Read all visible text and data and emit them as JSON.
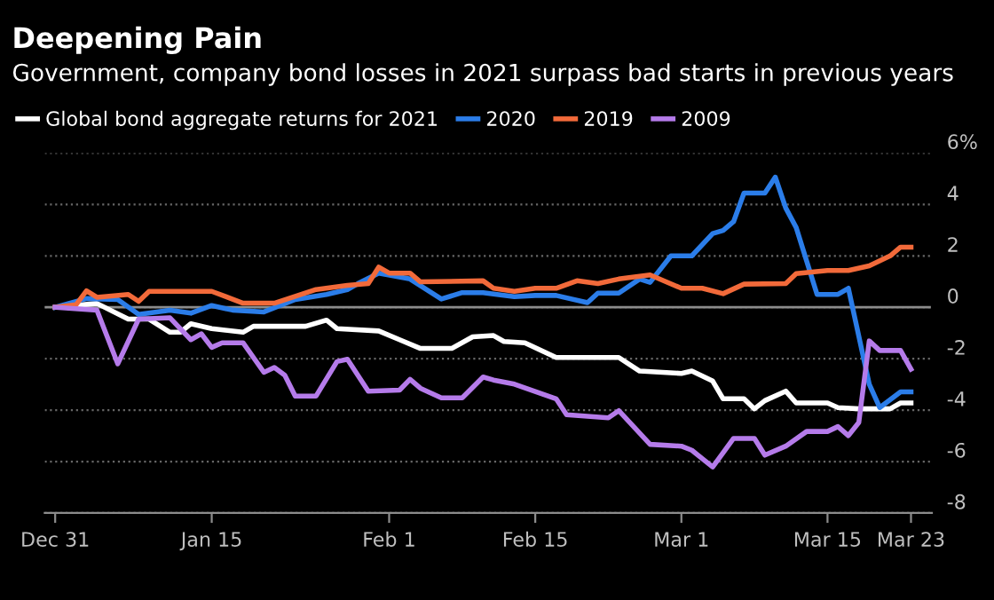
{
  "chart_data": {
    "type": "line",
    "title": "Deepening Pain",
    "subtitle": "Government, company bond losses in 2021 surpass bad starts in previous years",
    "xlim": [
      "2020-12-30",
      "2021-03-25"
    ],
    "xticks": [
      {
        "value": "2020-12-31",
        "label": "Dec 31"
      },
      {
        "value": "2021-01-15",
        "label": "Jan 15"
      },
      {
        "value": "2021-02-01",
        "label": "Feb 1"
      },
      {
        "value": "2021-02-15",
        "label": "Feb 15"
      },
      {
        "value": "2021-03-01",
        "label": "Mar 1"
      },
      {
        "value": "2021-03-15",
        "label": "Mar 15"
      },
      {
        "value": "2021-03-23",
        "label": "Mar 23"
      }
    ],
    "ylim": [
      -8,
      6
    ],
    "yticks": [
      -8,
      -6,
      -4,
      -2,
      0,
      2,
      4,
      {
        "value": 6,
        "label": "6%"
      }
    ],
    "grid": "y",
    "legend": "top left",
    "line_style": "solid",
    "ref_lines": [
      {
        "axis": "y",
        "value": 0,
        "color": "#8c8c8c",
        "line_style": "solid"
      }
    ],
    "series": [
      {
        "name": "Global bond aggregate returns for 2021",
        "color": "#ffffff",
        "x": [
          "2020-12-31",
          "2021-01-04",
          "2021-01-07",
          "2021-01-09",
          "2021-01-11",
          "2021-01-12",
          "2021-01-13",
          "2021-01-15",
          "2021-01-18",
          "2021-01-19",
          "2021-01-24",
          "2021-01-26",
          "2021-01-27",
          "2021-01-31",
          "2021-02-02",
          "2021-02-04",
          "2021-02-07",
          "2021-02-09",
          "2021-02-11",
          "2021-02-12",
          "2021-02-14",
          "2021-02-17",
          "2021-02-23",
          "2021-02-25",
          "2021-03-01",
          "2021-03-02",
          "2021-03-04",
          "2021-03-05",
          "2021-03-07",
          "2021-03-08",
          "2021-03-09",
          "2021-03-11",
          "2021-03-12",
          "2021-03-15",
          "2021-03-16",
          "2021-03-18",
          "2021-03-21",
          "2021-03-22",
          "2021-03-23"
        ],
        "values": [
          0,
          0.15,
          -0.46,
          -0.46,
          -0.97,
          -0.97,
          -0.64,
          -0.83,
          -0.97,
          -0.74,
          -0.74,
          -0.5,
          -0.83,
          -0.92,
          -1.26,
          -1.6,
          -1.6,
          -1.15,
          -1.1,
          -1.33,
          -1.38,
          -1.95,
          -1.95,
          -2.48,
          -2.57,
          -2.48,
          -2.87,
          -3.56,
          -3.56,
          -3.95,
          -3.63,
          -3.26,
          -3.72,
          -3.72,
          -3.9,
          -3.95,
          -3.95,
          -3.72,
          -3.72
        ]
      },
      {
        "name": "2020",
        "color": "#2b7de9",
        "x": [
          "2020-12-31",
          "2021-01-03",
          "2021-01-06",
          "2021-01-08",
          "2021-01-11",
          "2021-01-13",
          "2021-01-15",
          "2021-01-17",
          "2021-01-20",
          "2021-01-23",
          "2021-01-26",
          "2021-01-28",
          "2021-01-29",
          "2021-01-31",
          "2021-02-03",
          "2021-02-06",
          "2021-02-08",
          "2021-02-10",
          "2021-02-13",
          "2021-02-15",
          "2021-02-17",
          "2021-02-20",
          "2021-02-21",
          "2021-02-23",
          "2021-02-25",
          "2021-02-26",
          "2021-02-28",
          "2021-03-02",
          "2021-03-04",
          "2021-03-05",
          "2021-03-06",
          "2021-03-07",
          "2021-03-09",
          "2021-03-10",
          "2021-03-11",
          "2021-03-12",
          "2021-03-14",
          "2021-03-16",
          "2021-03-17",
          "2021-03-19",
          "2021-03-20",
          "2021-03-22",
          "2021-03-23"
        ],
        "values": [
          0,
          0.34,
          0.3,
          -0.28,
          -0.11,
          -0.23,
          0.07,
          -0.11,
          -0.18,
          0.3,
          0.5,
          0.69,
          0.92,
          1.33,
          1.1,
          0.32,
          0.57,
          0.57,
          0.41,
          0.46,
          0.46,
          0.18,
          0.55,
          0.55,
          1.1,
          0.97,
          2.0,
          2.0,
          2.87,
          2.99,
          3.33,
          4.44,
          4.44,
          5.06,
          3.86,
          3.1,
          0.5,
          0.5,
          0.74,
          -2.99,
          -3.9,
          -3.29,
          -3.29
        ]
      },
      {
        "name": "2019",
        "color": "#f26a3a",
        "x": [
          "2020-12-31",
          "2021-01-02",
          "2021-01-03",
          "2021-01-04",
          "2021-01-07",
          "2021-01-08",
          "2021-01-09",
          "2021-01-15",
          "2021-01-18",
          "2021-01-21",
          "2021-01-25",
          "2021-01-28",
          "2021-01-30",
          "2021-01-31",
          "2021-02-01",
          "2021-02-03",
          "2021-02-04",
          "2021-02-10",
          "2021-02-11",
          "2021-02-13",
          "2021-02-15",
          "2021-02-17",
          "2021-02-19",
          "2021-02-21",
          "2021-02-23",
          "2021-02-26",
          "2021-03-01",
          "2021-03-03",
          "2021-03-05",
          "2021-03-07",
          "2021-03-11",
          "2021-03-12",
          "2021-03-15",
          "2021-03-17",
          "2021-03-19",
          "2021-03-21",
          "2021-03-22",
          "2021-03-23"
        ],
        "values": [
          0,
          0.1,
          0.64,
          0.39,
          0.5,
          0.23,
          0.62,
          0.62,
          0.16,
          0.16,
          0.69,
          0.85,
          0.92,
          1.56,
          1.33,
          1.33,
          0.99,
          1.03,
          0.74,
          0.62,
          0.74,
          0.74,
          1.03,
          0.92,
          1.1,
          1.26,
          0.74,
          0.74,
          0.53,
          0.9,
          0.92,
          1.31,
          1.43,
          1.43,
          1.61,
          2.0,
          2.34,
          2.34
        ]
      },
      {
        "name": "2009",
        "color": "#b57bea",
        "x": [
          "2020-12-31",
          "2021-01-04",
          "2021-01-06",
          "2021-01-08",
          "2021-01-11",
          "2021-01-13",
          "2021-01-14",
          "2021-01-15",
          "2021-01-16",
          "2021-01-18",
          "2021-01-20",
          "2021-01-21",
          "2021-01-22",
          "2021-01-23",
          "2021-01-25",
          "2021-01-27",
          "2021-01-28",
          "2021-01-30",
          "2021-02-02",
          "2021-02-03",
          "2021-02-04",
          "2021-02-06",
          "2021-02-08",
          "2021-02-10",
          "2021-02-11",
          "2021-02-13",
          "2021-02-17",
          "2021-02-18",
          "2021-02-22",
          "2021-02-23",
          "2021-02-26",
          "2021-03-01",
          "2021-03-02",
          "2021-03-04",
          "2021-03-06",
          "2021-03-08",
          "2021-03-09",
          "2021-03-11",
          "2021-03-13",
          "2021-03-15",
          "2021-03-16",
          "2021-03-17",
          "2021-03-18",
          "2021-03-19",
          "2021-03-20",
          "2021-03-22",
          "2021-03-23"
        ],
        "values": [
          0,
          -0.11,
          -2.2,
          -0.46,
          -0.41,
          -1.26,
          -1.03,
          -1.56,
          -1.38,
          -1.38,
          -2.53,
          -2.34,
          -2.64,
          -3.45,
          -3.45,
          -2.11,
          -2.02,
          -3.26,
          -3.22,
          -2.8,
          -3.15,
          -3.52,
          -3.52,
          -2.71,
          -2.83,
          -2.99,
          -3.56,
          -4.18,
          -4.3,
          -4.02,
          -5.33,
          -5.4,
          -5.56,
          -6.21,
          -5.1,
          -5.1,
          -5.75,
          -5.4,
          -4.83,
          -4.83,
          -4.64,
          -4.99,
          -4.48,
          -1.31,
          -1.68,
          -1.68,
          -2.41
        ]
      }
    ]
  }
}
